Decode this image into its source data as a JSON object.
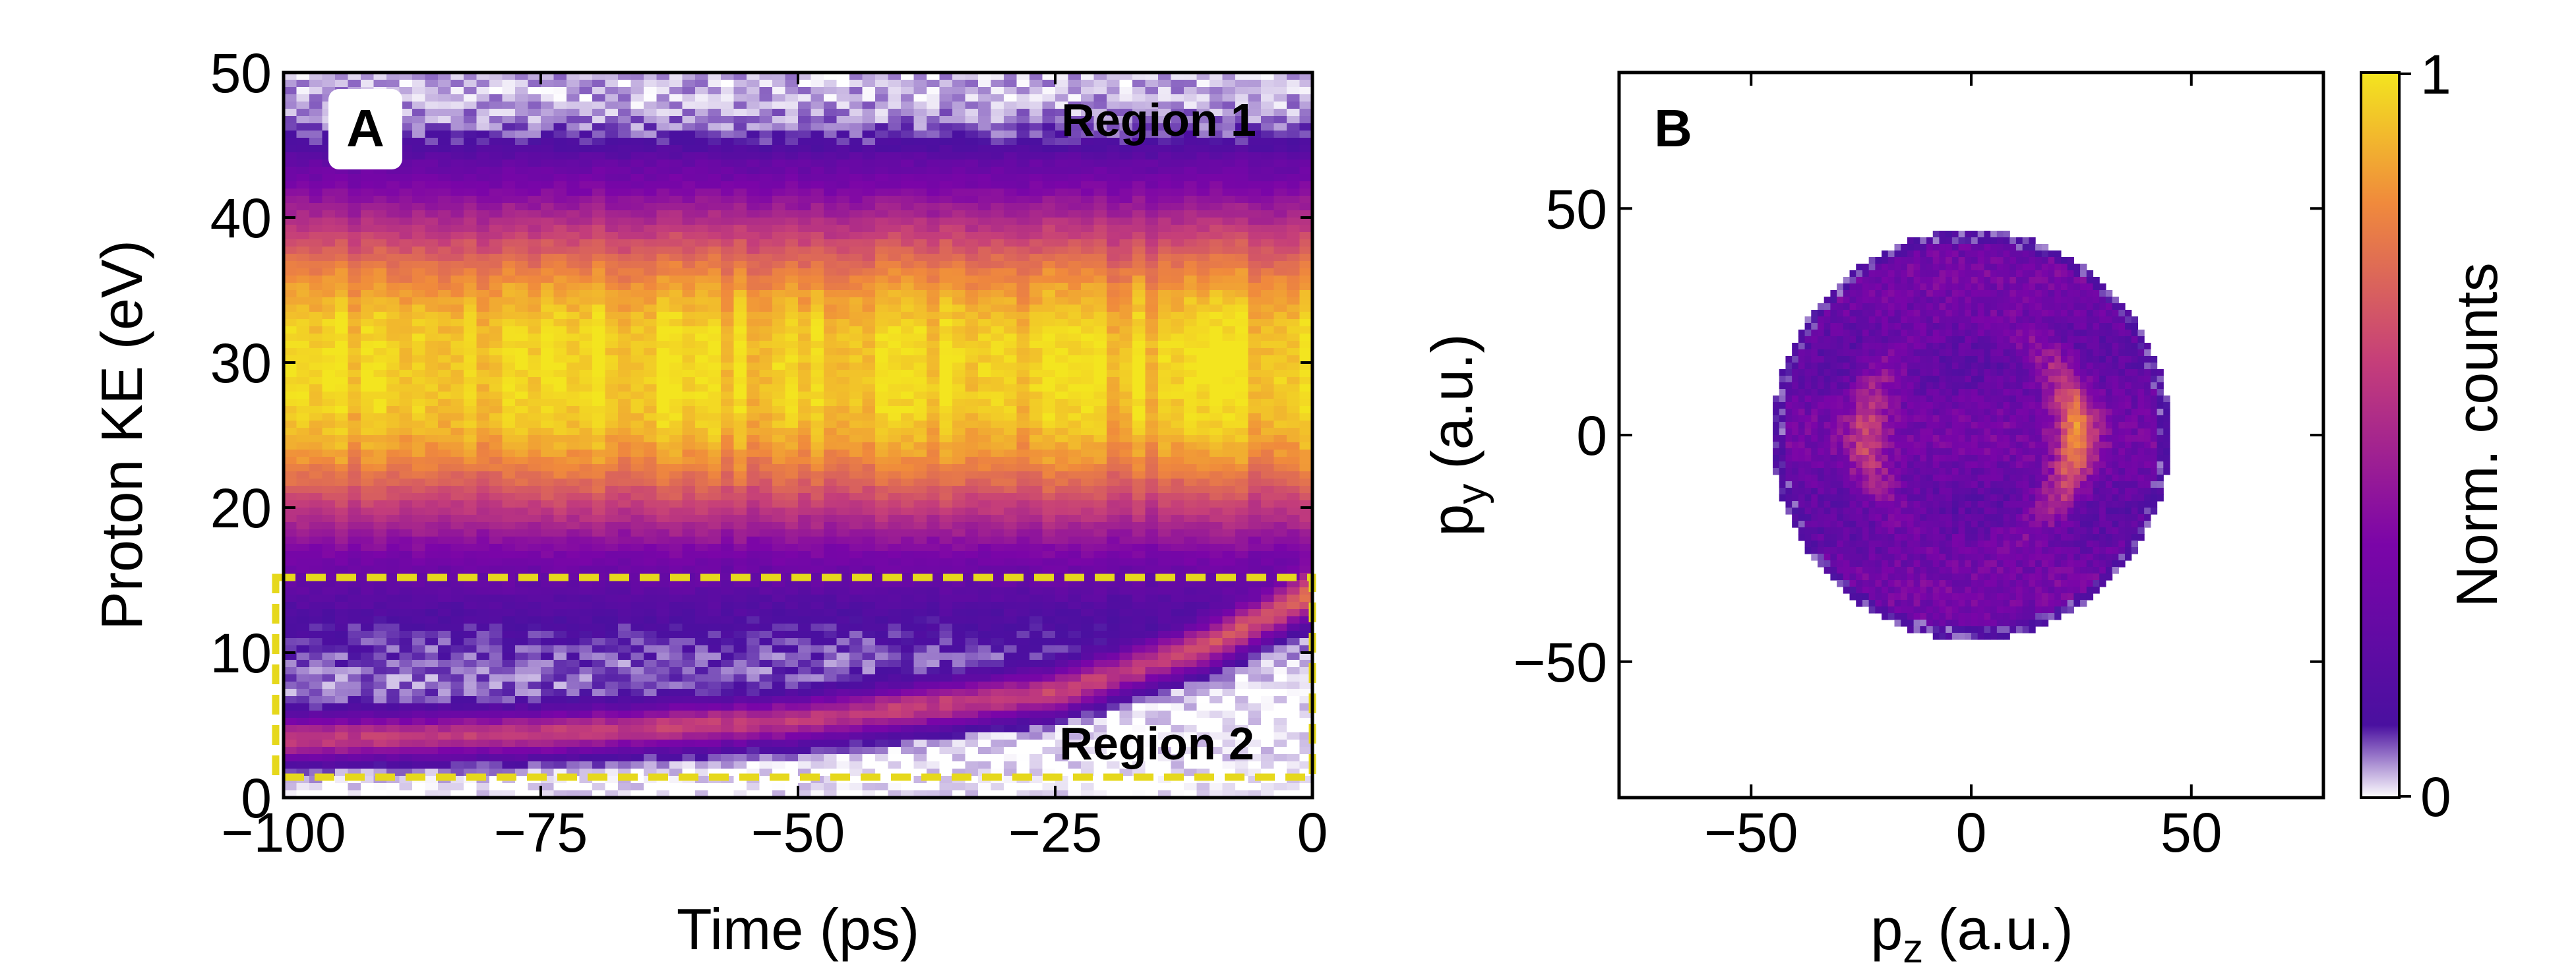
{
  "chart_data": [
    {
      "panel": "A",
      "type": "heatmap",
      "xlabel": "Time (ps)",
      "ylabel": "Proton KE (eV)",
      "xlim": [
        -100,
        0
      ],
      "ylim": [
        0,
        50
      ],
      "xticks": [
        -100,
        -75,
        -50,
        -25,
        0
      ],
      "yticks": [
        0,
        10,
        20,
        30,
        40,
        50
      ],
      "xtick_labels": [
        "−100",
        "−75",
        "−50",
        "−25",
        "0"
      ],
      "ytick_labels": [
        "0",
        "10",
        "20",
        "30",
        "40",
        "50"
      ],
      "main_band": {
        "center_ev": 29.5,
        "half_width_ev": 12.5,
        "peak_norm": 0.95
      },
      "low_energy_band": {
        "description_points": [
          {
            "t": -100,
            "ke": 4.0
          },
          {
            "t": -75,
            "ke": 4.4
          },
          {
            "t": -50,
            "ke": 5.3
          },
          {
            "t": -25,
            "ke": 7.2
          },
          {
            "t": -10,
            "ke": 10.5
          },
          {
            "t": 0,
            "ke": 14.0
          }
        ],
        "peak_norm": 0.55
      },
      "annotations": [
        {
          "label": "Region 1",
          "ke_range": [
            15,
            50
          ]
        },
        {
          "label": "Region 2",
          "ke_range": [
            1.5,
            15
          ]
        }
      ],
      "region2_box": {
        "t_range": [
          -100,
          0
        ],
        "ke_range": [
          1.5,
          15
        ],
        "color": "#e6d81c"
      }
    },
    {
      "panel": "B",
      "type": "heatmap",
      "xlabel": "p",
      "xlabel_sub": "z",
      "xlabel_unit": "(a.u.)",
      "ylabel": "p",
      "ylabel_sub": "y",
      "ylabel_unit": "(a.u.)",
      "xlim": [
        -80,
        80
      ],
      "ylim": [
        -80,
        80
      ],
      "xticks": [
        -50,
        0,
        50
      ],
      "yticks": [
        -50,
        0,
        50
      ],
      "xtick_labels": [
        "−50",
        "0",
        "50"
      ],
      "ytick_labels": [
        "−50",
        "0",
        "50"
      ],
      "disk_radius": 44,
      "ring_radius": 24,
      "ring_norm_right": 0.75,
      "ring_norm_left": 0.55,
      "colorbar": {
        "label": "Norm. counts",
        "min_label": "0",
        "max_label": "1",
        "range": [
          0,
          1
        ],
        "colormap": "plasma_r (white → purple → orange → yellow)"
      }
    }
  ],
  "colors": {
    "box": "#e6d81c",
    "cmap_stops": [
      "#ffffff",
      "#4a10a0",
      "#7b05a8",
      "#c53e7a",
      "#f08a3c",
      "#f3e51f"
    ]
  }
}
